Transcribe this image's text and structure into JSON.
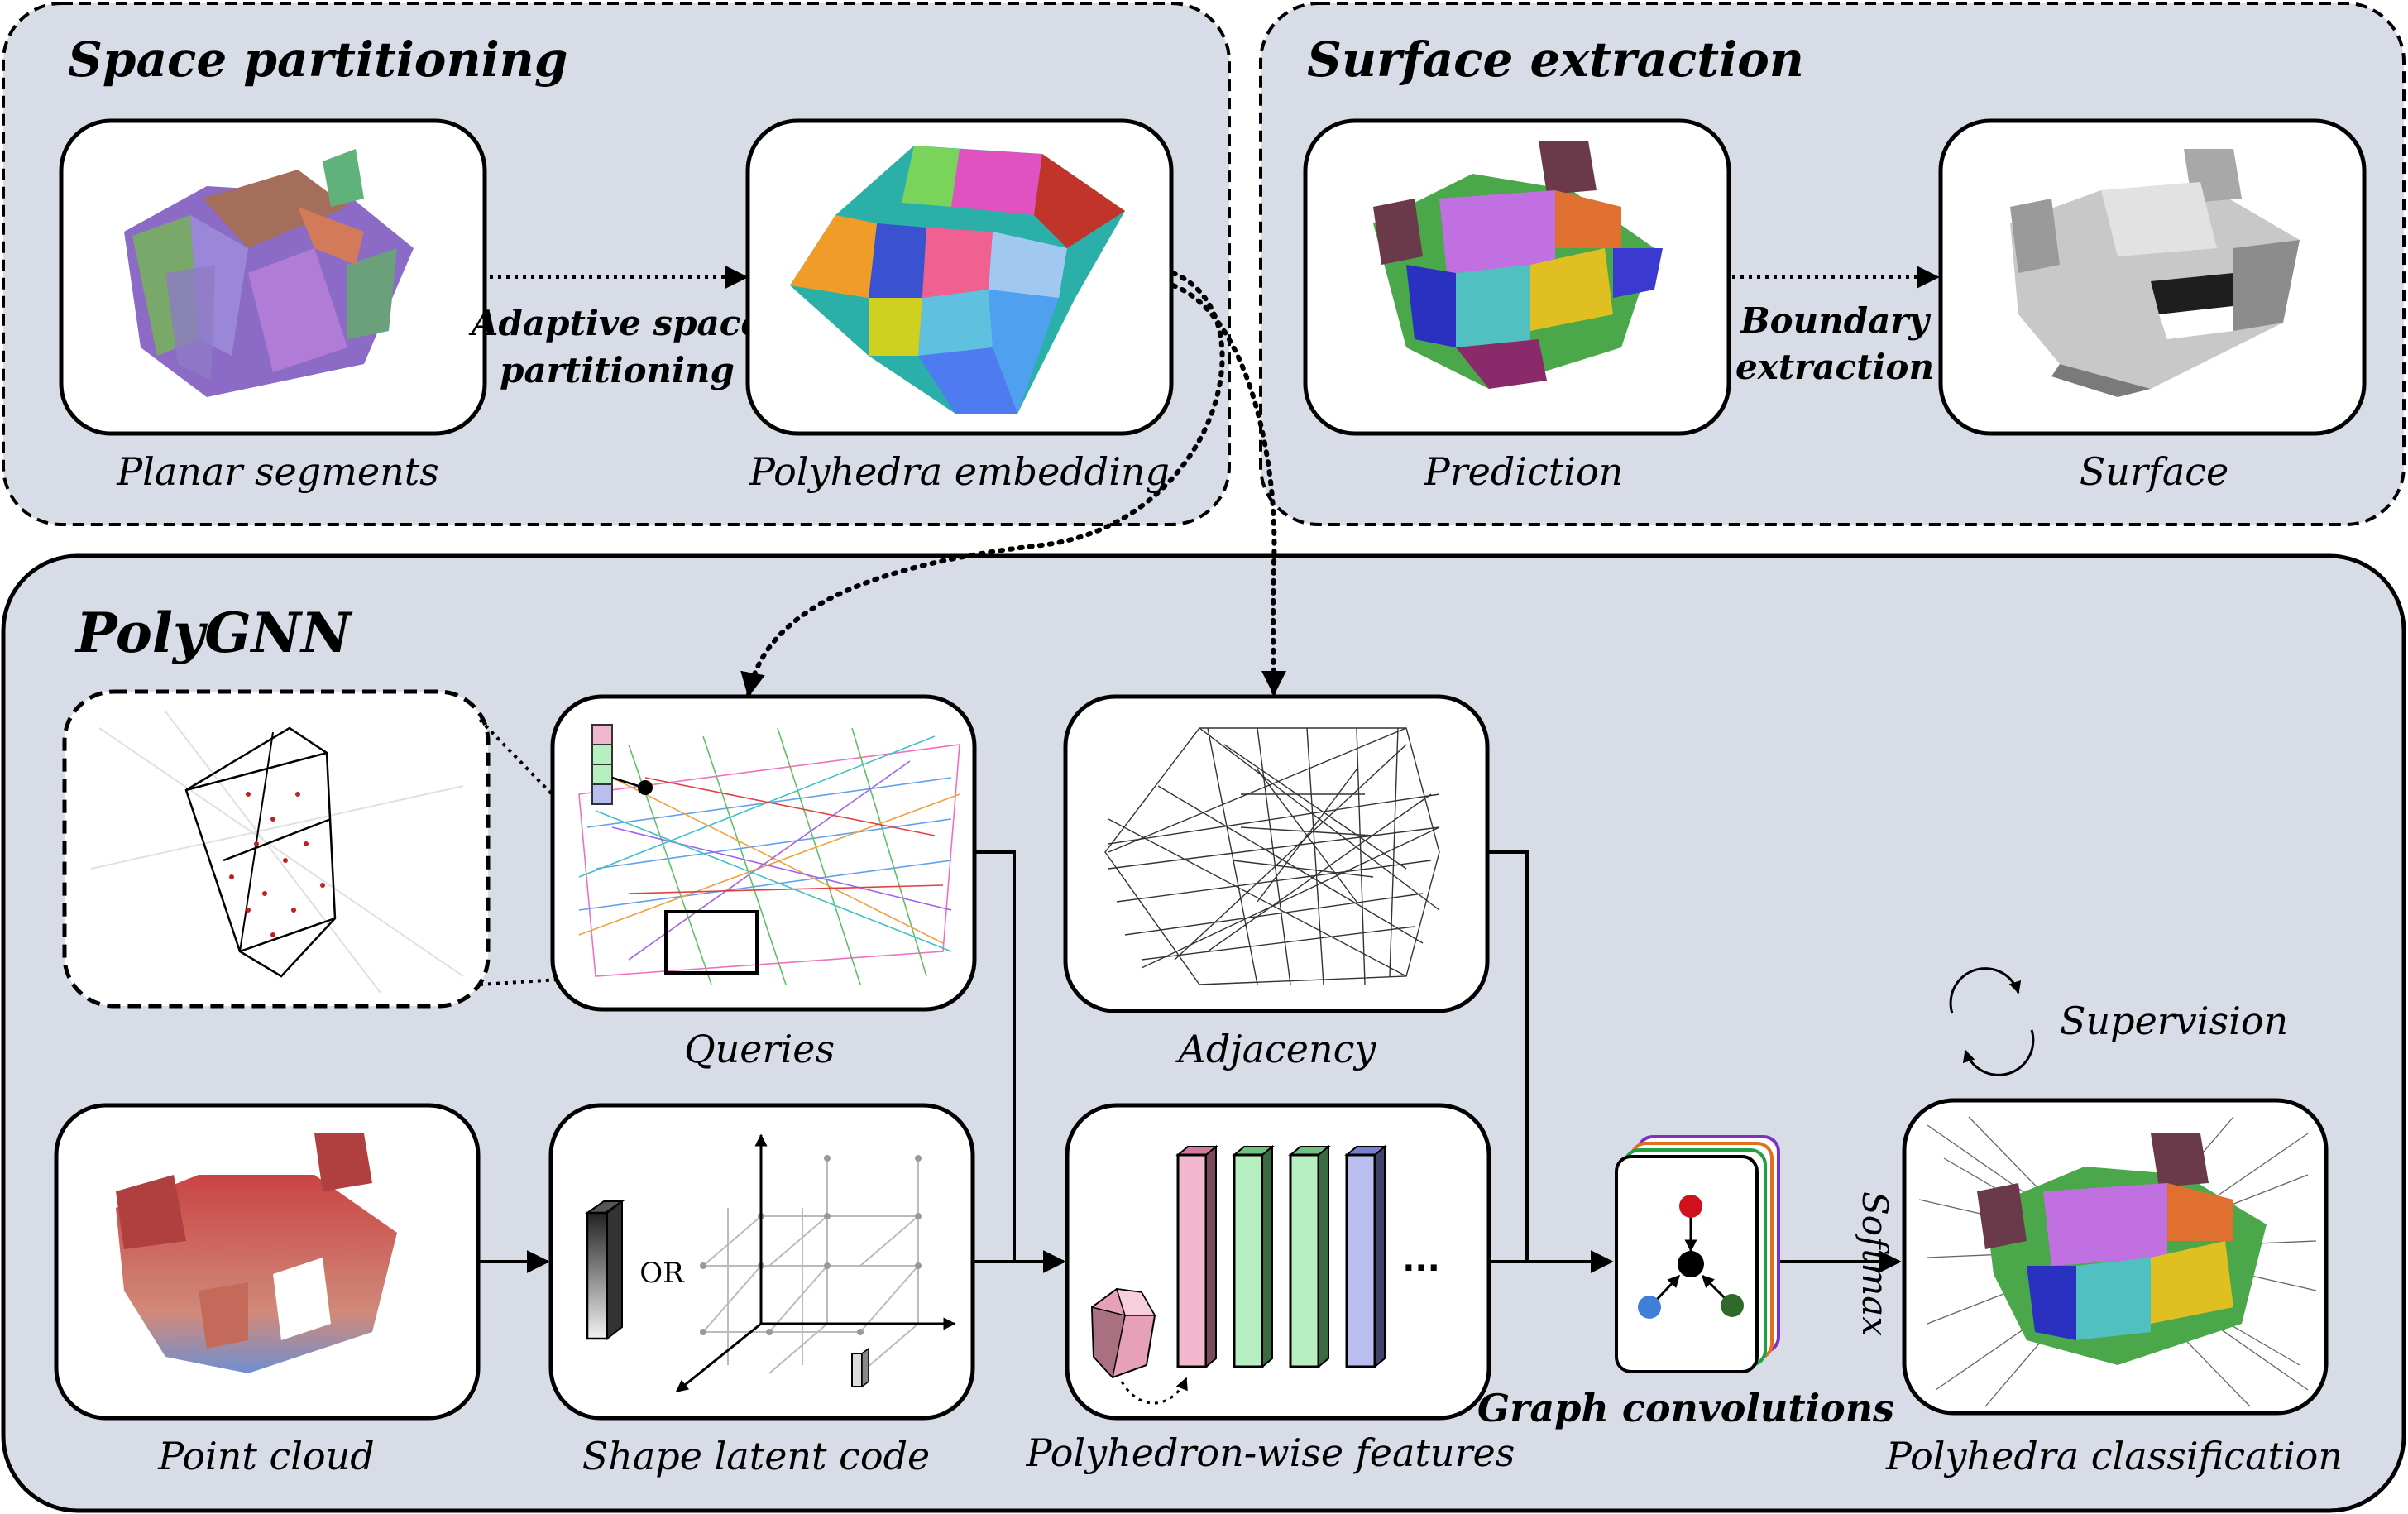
{
  "sections": {
    "space_partitioning": "Space partitioning",
    "surface_extraction": "Surface extraction",
    "polygnn": "PolyGNN"
  },
  "captions": {
    "planar_segments": "Planar segments",
    "polyhedra_embedding": "Polyhedra embedding",
    "prediction": "Prediction",
    "surface": "Surface",
    "queries": "Queries",
    "adjacency": "Adjacency",
    "point_cloud": "Point cloud",
    "shape_latent_code": "Shape latent code",
    "polyhedron_wise_features": "Polyhedron-wise features",
    "polyhedra_classification": "Polyhedra classification"
  },
  "arrow_labels": {
    "adaptive_space_1": "Adaptive space",
    "adaptive_space_2": "partitioning",
    "boundary_1": "Boundary",
    "boundary_2": "extraction",
    "graph_convolutions": "Graph convolutions",
    "softmax": "Softmax",
    "supervision": "Supervision",
    "or": "OR",
    "ellipsis": "..."
  },
  "colors": {
    "panel_fill": "#d7dce6",
    "feature_pink": "#f3b6cf",
    "feature_green": "#b6efc0",
    "feature_blue": "#b9bdf0",
    "node_red": "#d0101a",
    "node_blue": "#3f7fd8",
    "node_green": "#2f6a2a"
  }
}
